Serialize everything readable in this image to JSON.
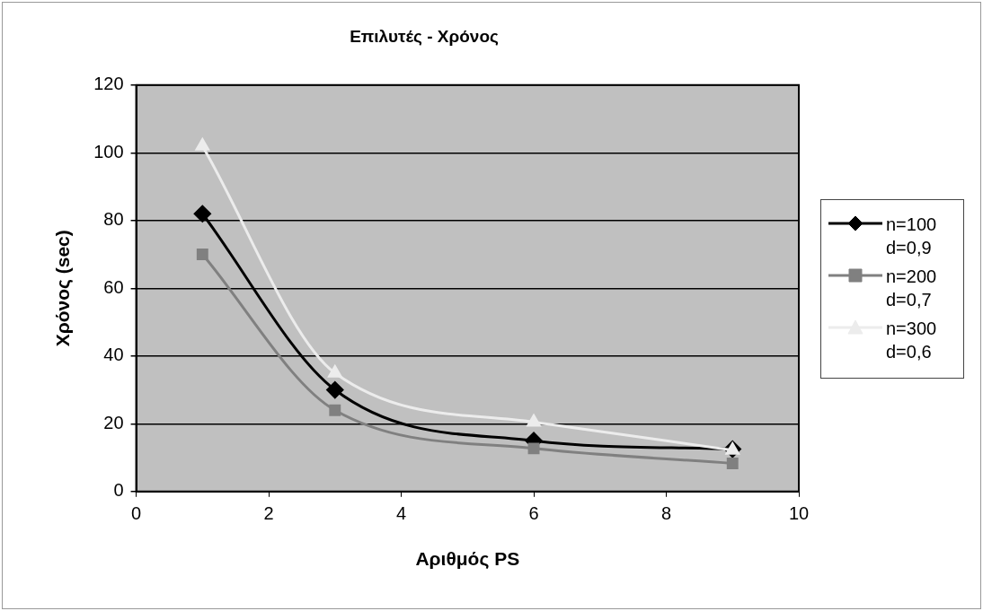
{
  "chart_data": {
    "type": "line",
    "title": "Επιλυτές - Χρόνος",
    "xlabel": "Αριθμός PS",
    "ylabel": "Χρόνος (sec)",
    "x": [
      1,
      3,
      6,
      9
    ],
    "series": [
      {
        "name": "n=100 d=0,9",
        "color": "#000000",
        "marker": "diamond",
        "values": [
          82,
          30,
          15,
          12.5
        ]
      },
      {
        "name": "n=200 d=0,7",
        "color": "#808080",
        "marker": "square",
        "values": [
          70,
          24,
          12.7,
          8.3
        ]
      },
      {
        "name": "n=300 d=0,6",
        "color": "#ececec",
        "marker": "triangle",
        "values": [
          102,
          35,
          20.5,
          12.2
        ]
      }
    ],
    "xlim": [
      0,
      10
    ],
    "xticks": [
      0,
      2,
      4,
      6,
      8,
      10
    ],
    "ylim": [
      0,
      120
    ],
    "yticks": [
      0,
      20,
      40,
      60,
      80,
      100,
      120
    ],
    "grid": "y",
    "legend": "right",
    "line_style": "solid"
  }
}
